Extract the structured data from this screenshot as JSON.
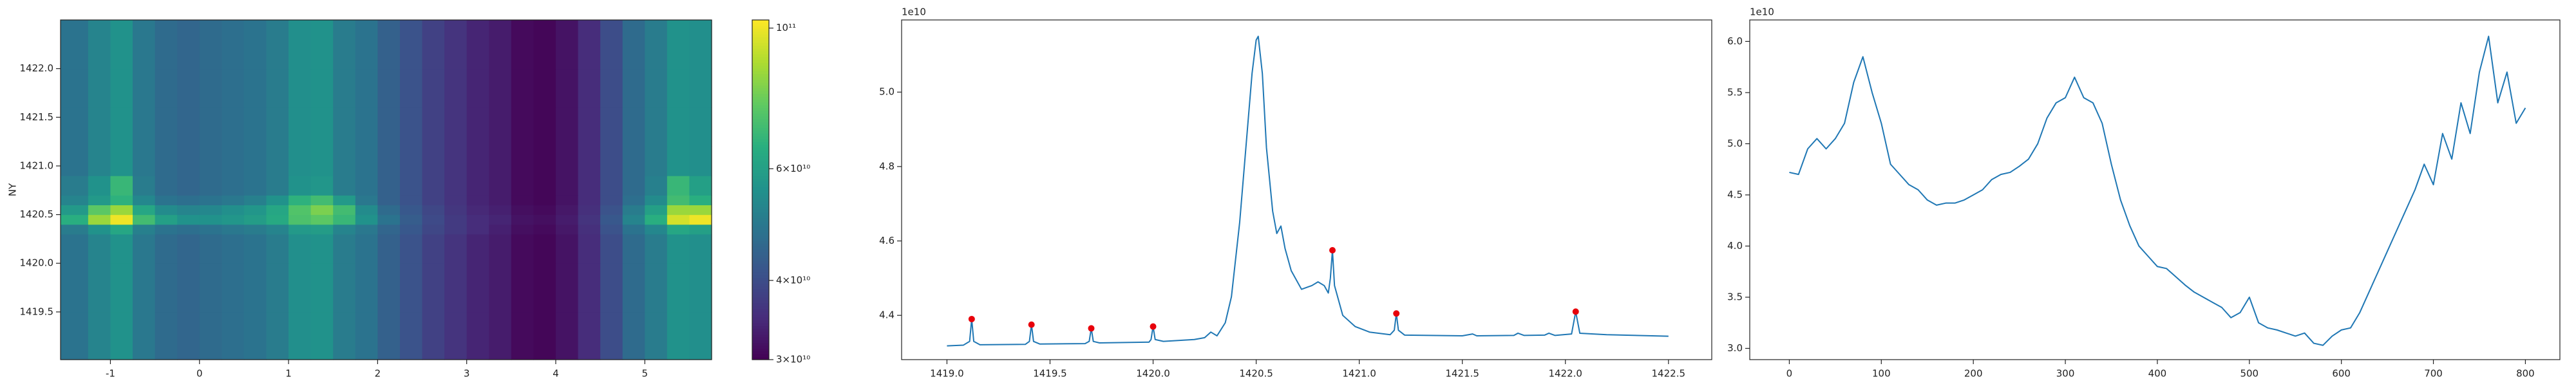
{
  "chart_data": [
    {
      "type": "heatmap",
      "ylabel": "NY",
      "colormap": "viridis",
      "xlim": [
        -1.56,
        5.75
      ],
      "xticks": [
        -1,
        0,
        1,
        2,
        3,
        4,
        5
      ],
      "ylim": [
        1419.01,
        1422.5
      ],
      "yticks": [
        1419.5,
        {
          "value": 1420.0,
          "label": "1420.0"
        },
        1420.5,
        {
          "value": 1421.0,
          "label": "1421.0"
        },
        1421.5,
        {
          "value": 1422.0,
          "label": "1422.0"
        }
      ],
      "xedges": [
        -1.56,
        -1.25,
        -1,
        -0.75,
        -0.5,
        -0.25,
        0,
        0.25,
        0.5,
        0.75,
        1,
        1.25,
        1.5,
        1.75,
        2,
        2.25,
        2.5,
        2.75,
        3,
        3.25,
        3.5,
        3.75,
        4,
        4.25,
        4.5,
        4.75,
        5,
        5.25,
        5.5,
        5.75
      ],
      "yedges": [
        1419.01,
        1419.5,
        1420.0,
        1420.3,
        1420.4,
        1420.5,
        1420.6,
        1420.7,
        1420.9,
        1421.2,
        1421.6,
        1422.0,
        1422.5
      ],
      "z": [
        [
          48000000000.0,
          52000000000.0,
          56000000000.0,
          49000000000.0,
          46000000000.0,
          45000000000.0,
          46000000000.0,
          47000000000.0,
          48000000000.0,
          50000000000.0,
          55000000000.0,
          56000000000.0,
          50000000000.0,
          48000000000.0,
          44000000000.0,
          41000000000.0,
          38000000000.0,
          36000000000.0,
          34000000000.0,
          33000000000.0,
          31000000000.0,
          30500000000.0,
          32000000000.0,
          35000000000.0,
          40000000000.0,
          46000000000.0,
          50000000000.0,
          56000000000.0,
          55000000000.0
        ],
        [
          48000000000.0,
          52000000000.0,
          56000000000.0,
          49000000000.0,
          46000000000.0,
          45000000000.0,
          46000000000.0,
          47000000000.0,
          48000000000.0,
          50000000000.0,
          55000000000.0,
          56000000000.0,
          50000000000.0,
          48000000000.0,
          44000000000.0,
          41000000000.0,
          38000000000.0,
          36000000000.0,
          34000000000.0,
          33000000000.0,
          31000000000.0,
          30500000000.0,
          32000000000.0,
          35000000000.0,
          40000000000.0,
          46000000000.0,
          50000000000.0,
          56000000000.0,
          55000000000.0
        ],
        [
          48000000000.0,
          52000000000.0,
          56000000000.0,
          49000000000.0,
          46000000000.0,
          45000000000.0,
          46000000000.0,
          47000000000.0,
          48000000000.0,
          50000000000.0,
          55000000000.0,
          56000000000.0,
          50000000000.0,
          48000000000.0,
          44000000000.0,
          41000000000.0,
          38000000000.0,
          36000000000.0,
          34000000000.0,
          33000000000.0,
          31000000000.0,
          30500000000.0,
          32000000000.0,
          35000000000.0,
          40000000000.0,
          46000000000.0,
          50000000000.0,
          56000000000.0,
          55000000000.0
        ],
        [
          50000000000.0,
          56000000000.0,
          62000000000.0,
          51000000000.0,
          48000000000.0,
          47000000000.0,
          48000000000.0,
          49000000000.0,
          50000000000.0,
          52000000000.0,
          58000000000.0,
          59000000000.0,
          52000000000.0,
          49000000000.0,
          45000000000.0,
          42000000000.0,
          39000000000.0,
          37000000000.0,
          35000000000.0,
          33500000000.0,
          31500000000.0,
          31000000000.0,
          32500000000.0,
          35500000000.0,
          41000000000.0,
          48000000000.0,
          53000000000.0,
          62000000000.0,
          60000000000.0
        ],
        [
          65000000000.0,
          85000000000.0,
          100000000000.0,
          70000000000.0,
          60000000000.0,
          56000000000.0,
          56000000000.0,
          57000000000.0,
          59000000000.0,
          63000000000.0,
          72000000000.0,
          75000000000.0,
          68000000000.0,
          56000000000.0,
          48000000000.0,
          43000000000.0,
          39500000000.0,
          37000000000.0,
          35000000000.0,
          34000000000.0,
          32000000000.0,
          31500000000.0,
          33000000000.0,
          36000000000.0,
          42000000000.0,
          52000000000.0,
          65000000000.0,
          95000000000.0,
          100000000000.0
        ],
        [
          58000000000.0,
          75000000000.0,
          85000000000.0,
          62000000000.0,
          54000000000.0,
          52000000000.0,
          53000000000.0,
          55000000000.0,
          57000000000.0,
          62000000000.0,
          73000000000.0,
          80000000000.0,
          70000000000.0,
          54000000000.0,
          46000000000.0,
          42000000000.0,
          39000000000.0,
          36500000000.0,
          34500000000.0,
          33500000000.0,
          31500000000.0,
          31000000000.0,
          32500000000.0,
          35500000000.0,
          41000000000.0,
          50000000000.0,
          60000000000.0,
          85000000000.0,
          85000000000.0
        ],
        [
          52000000000.0,
          58000000000.0,
          66000000000.0,
          53000000000.0,
          48000000000.0,
          47000000000.0,
          48000000000.0,
          49000000000.0,
          51000000000.0,
          56000000000.0,
          66000000000.0,
          70000000000.0,
          58000000000.0,
          49000000000.0,
          44000000000.0,
          41000000000.0,
          38000000000.0,
          36000000000.0,
          34000000000.0,
          33000000000.0,
          31000000000.0,
          30500000000.0,
          32000000000.0,
          35000000000.0,
          40000000000.0,
          47000000000.0,
          54000000000.0,
          70000000000.0,
          65000000000.0
        ],
        [
          50000000000.0,
          56000000000.0,
          68000000000.0,
          50000000000.0,
          46000000000.0,
          45000000000.0,
          46000000000.0,
          47000000000.0,
          48000000000.0,
          50000000000.0,
          56000000000.0,
          57000000000.0,
          50000000000.0,
          48000000000.0,
          44000000000.0,
          41000000000.0,
          38000000000.0,
          36000000000.0,
          34000000000.0,
          33000000000.0,
          31000000000.0,
          30500000000.0,
          32000000000.0,
          35000000000.0,
          40000000000.0,
          46000000000.0,
          51000000000.0,
          68000000000.0,
          60000000000.0
        ],
        [
          48000000000.0,
          52000000000.0,
          56000000000.0,
          49000000000.0,
          46000000000.0,
          45000000000.0,
          46000000000.0,
          47000000000.0,
          48000000000.0,
          50000000000.0,
          55000000000.0,
          56000000000.0,
          50000000000.0,
          48000000000.0,
          44000000000.0,
          41000000000.0,
          38000000000.0,
          36000000000.0,
          34000000000.0,
          33000000000.0,
          31000000000.0,
          30500000000.0,
          32000000000.0,
          35000000000.0,
          40000000000.0,
          46000000000.0,
          50000000000.0,
          56000000000.0,
          55000000000.0
        ],
        [
          48000000000.0,
          52000000000.0,
          56000000000.0,
          49000000000.0,
          46000000000.0,
          45000000000.0,
          46000000000.0,
          47000000000.0,
          48000000000.0,
          50000000000.0,
          55000000000.0,
          56000000000.0,
          50000000000.0,
          48000000000.0,
          44000000000.0,
          41000000000.0,
          38000000000.0,
          36000000000.0,
          34000000000.0,
          33000000000.0,
          31000000000.0,
          30500000000.0,
          32000000000.0,
          35000000000.0,
          40000000000.0,
          46000000000.0,
          50000000000.0,
          56000000000.0,
          55000000000.0
        ],
        [
          48000000000.0,
          52000000000.0,
          56000000000.0,
          49000000000.0,
          46000000000.0,
          45000000000.0,
          46000000000.0,
          47000000000.0,
          48000000000.0,
          50000000000.0,
          55000000000.0,
          56000000000.0,
          50000000000.0,
          48000000000.0,
          44000000000.0,
          41000000000.0,
          38000000000.0,
          36000000000.0,
          34000000000.0,
          33000000000.0,
          31000000000.0,
          30500000000.0,
          32000000000.0,
          35000000000.0,
          40000000000.0,
          46000000000.0,
          50000000000.0,
          56000000000.0,
          55000000000.0
        ],
        [
          48000000000.0,
          52000000000.0,
          56000000000.0,
          49000000000.0,
          46000000000.0,
          45000000000.0,
          46000000000.0,
          47000000000.0,
          48000000000.0,
          50000000000.0,
          55000000000.0,
          56000000000.0,
          50000000000.0,
          48000000000.0,
          44000000000.0,
          41000000000.0,
          38000000000.0,
          36000000000.0,
          34000000000.0,
          33000000000.0,
          31000000000.0,
          30500000000.0,
          32000000000.0,
          35000000000.0,
          40000000000.0,
          46000000000.0,
          50000000000.0,
          56000000000.0,
          55000000000.0
        ]
      ],
      "colorbar": {
        "log": true,
        "clim": [
          30000000000.0,
          103000000000.0
        ],
        "ticks": [
          {
            "value": 100000000000.0,
            "label": "10¹¹"
          },
          {
            "value": 60000000000.0,
            "label": "6×10¹⁰"
          },
          {
            "value": 40000000000.0,
            "label": "4×10¹⁰"
          },
          {
            "value": 30000000000.0,
            "label": "3×10¹⁰"
          }
        ]
      }
    },
    {
      "type": "line",
      "offset_text": "1e10",
      "xlim": [
        1418.78,
        1422.71
      ],
      "xticks": [
        {
          "value": 1419.0,
          "label": "1419.0"
        },
        1419.5,
        {
          "value": 1420.0,
          "label": "1420.0"
        },
        1420.5,
        {
          "value": 1421.0,
          "label": "1421.0"
        },
        1421.5,
        {
          "value": 1422.0,
          "label": "1422.0"
        },
        1422.5
      ],
      "ylim": [
        4.281,
        5.194
      ],
      "yticks": [
        4.4,
        4.6,
        4.8,
        {
          "value": 5.0,
          "label": "5.0"
        }
      ],
      "series": [
        {
          "type": "line",
          "color": "#1f77b4",
          "x": [
            1419.0,
            1419.08,
            1419.11,
            1419.12,
            1419.13,
            1419.16,
            1419.38,
            1419.4,
            1419.41,
            1419.42,
            1419.45,
            1419.67,
            1419.69,
            1419.7,
            1419.71,
            1419.74,
            1419.98,
            1419.99,
            1420.0,
            1420.01,
            1420.05,
            1420.2,
            1420.25,
            1420.28,
            1420.31,
            1420.35,
            1420.38,
            1420.42,
            1420.45,
            1420.48,
            1420.5,
            1420.51,
            1420.53,
            1420.55,
            1420.58,
            1420.6,
            1420.62,
            1420.64,
            1420.67,
            1420.72,
            1420.77,
            1420.8,
            1420.83,
            1420.85,
            1420.86,
            1420.87,
            1420.88,
            1420.92,
            1420.98,
            1421.05,
            1421.15,
            1421.17,
            1421.18,
            1421.19,
            1421.22,
            1421.5,
            1421.55,
            1421.57,
            1421.75,
            1421.77,
            1421.8,
            1421.9,
            1421.92,
            1421.95,
            1422.03,
            1422.05,
            1422.07,
            1422.2,
            1422.5
          ],
          "values": [
            4.318,
            4.32,
            4.33,
            4.39,
            4.33,
            4.321,
            4.322,
            4.33,
            4.375,
            4.33,
            4.323,
            4.324,
            4.33,
            4.365,
            4.33,
            4.326,
            4.328,
            4.335,
            4.37,
            4.335,
            4.33,
            4.335,
            4.34,
            4.355,
            4.345,
            4.38,
            4.45,
            4.65,
            4.85,
            5.05,
            5.14,
            5.15,
            5.05,
            4.85,
            4.68,
            4.62,
            4.64,
            4.58,
            4.52,
            4.47,
            4.48,
            4.49,
            4.48,
            4.46,
            4.5,
            4.575,
            4.48,
            4.4,
            4.37,
            4.355,
            4.348,
            4.36,
            4.405,
            4.36,
            4.347,
            4.345,
            4.35,
            4.345,
            4.346,
            4.352,
            4.346,
            4.347,
            4.352,
            4.346,
            4.35,
            4.41,
            4.352,
            4.348,
            4.344
          ]
        },
        {
          "type": "scatter",
          "color": "#e8000b",
          "x": [
            1419.12,
            1419.41,
            1419.7,
            1420.0,
            1420.87,
            1421.18,
            1422.05
          ],
          "values": [
            4.39,
            4.375,
            4.365,
            4.37,
            4.575,
            4.405,
            4.41
          ]
        }
      ]
    },
    {
      "type": "line",
      "offset_text": "1e10",
      "xlim": [
        -43,
        837.5
      ],
      "xticks": [
        0,
        100,
        200,
        300,
        400,
        500,
        600,
        700,
        800
      ],
      "ylim": [
        2.89,
        6.21
      ],
      "yticks": [
        {
          "value": 3.0,
          "label": "3.0"
        },
        3.5,
        {
          "value": 4.0,
          "label": "4.0"
        },
        4.5,
        {
          "value": 5.0,
          "label": "5.0"
        },
        5.5,
        {
          "value": 6.0,
          "label": "6.0"
        }
      ],
      "series": [
        {
          "type": "line",
          "color": "#1f77b4",
          "x": [
            0,
            10,
            20,
            30,
            40,
            50,
            60,
            70,
            80,
            90,
            100,
            110,
            120,
            130,
            140,
            150,
            160,
            170,
            180,
            190,
            200,
            210,
            220,
            230,
            240,
            250,
            260,
            270,
            280,
            290,
            300,
            310,
            320,
            330,
            340,
            350,
            360,
            370,
            380,
            390,
            400,
            410,
            420,
            430,
            440,
            450,
            460,
            470,
            480,
            490,
            500,
            510,
            520,
            530,
            540,
            550,
            560,
            570,
            580,
            590,
            600,
            610,
            620,
            630,
            640,
            650,
            660,
            670,
            680,
            690,
            700,
            710,
            720,
            730,
            740,
            750,
            760,
            770,
            780,
            790,
            800
          ],
          "values": [
            4.72,
            4.7,
            4.95,
            5.05,
            4.95,
            5.05,
            5.2,
            5.6,
            5.85,
            5.5,
            5.2,
            4.8,
            4.7,
            4.6,
            4.55,
            4.45,
            4.4,
            4.42,
            4.42,
            4.45,
            4.5,
            4.55,
            4.65,
            4.7,
            4.72,
            4.78,
            4.85,
            5.0,
            5.25,
            5.4,
            5.45,
            5.65,
            5.45,
            5.4,
            5.2,
            4.8,
            4.45,
            4.2,
            4.0,
            3.9,
            3.8,
            3.78,
            3.7,
            3.62,
            3.55,
            3.5,
            3.45,
            3.4,
            3.3,
            3.35,
            3.5,
            3.25,
            3.2,
            3.18,
            3.15,
            3.12,
            3.15,
            3.05,
            3.03,
            3.12,
            3.18,
            3.2,
            3.35,
            3.55,
            3.75,
            3.95,
            4.15,
            4.35,
            4.55,
            4.8,
            4.6,
            5.1,
            4.85,
            5.4,
            5.1,
            5.7,
            6.05,
            5.4,
            5.7,
            5.2,
            5.35
          ]
        }
      ]
    }
  ]
}
